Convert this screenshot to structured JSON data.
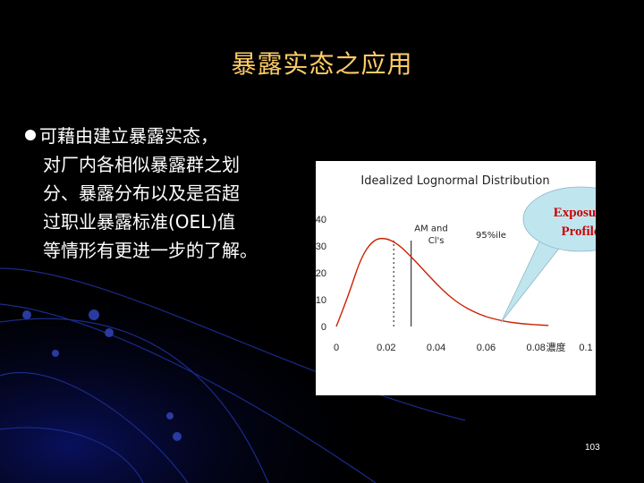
{
  "slide": {
    "title": "暴露实态之应用",
    "bullet_lines": [
      "可藉由建立暴露实态，",
      "对厂内各相似暴露群之划",
      "分、暴露分布以及是否超",
      "过职业暴露标准(OEL)值",
      "等情形有更进一步的了解。"
    ],
    "page_number": "103"
  },
  "colors": {
    "background": "#000000",
    "title": "#ffcc66",
    "text": "#ffffff",
    "deco_line": "#1a2a8a",
    "curve": "#cc2200",
    "callout_fill": "#bfe6ef",
    "callout_text": "#cc0000"
  },
  "chart_data": {
    "type": "line",
    "title": "Idealized Lognormal Distribution",
    "xlabel": "濃度",
    "ylabel": "",
    "xlim": [
      0,
      0.1
    ],
    "ylim": [
      0,
      40
    ],
    "x_ticks": [
      "0",
      "0.02",
      "0.04",
      "0.06",
      "0.08",
      "0.1"
    ],
    "y_ticks": [
      "0",
      "10",
      "20",
      "30",
      "40"
    ],
    "grid": false,
    "series": [
      {
        "x": [
          0,
          0.005,
          0.01,
          0.015,
          0.02,
          0.025,
          0.03,
          0.035,
          0.04,
          0.045,
          0.05,
          0.055,
          0.06,
          0.065,
          0.07,
          0.075,
          0.08,
          0.085
        ],
        "y": [
          0,
          12,
          26,
          32.5,
          33,
          30.5,
          26,
          21,
          16,
          11.5,
          8,
          5.5,
          3.6,
          2.4,
          1.5,
          1,
          0.6,
          0.4
        ]
      }
    ],
    "reference_lines": [
      {
        "x": 0.023,
        "style": "dotted"
      },
      {
        "x": 0.03,
        "style": "solid"
      }
    ],
    "annotations": [
      {
        "text": "AM and",
        "x": 0.038,
        "y": 35.5
      },
      {
        "text": "Cl's",
        "x": 0.04,
        "y": 31
      },
      {
        "text": "95%ile",
        "x": 0.062,
        "y": 33
      }
    ],
    "callout": {
      "lines": [
        "Exposure",
        "Profile"
      ],
      "target_x": 0.066,
      "target_y": 1.5
    }
  }
}
